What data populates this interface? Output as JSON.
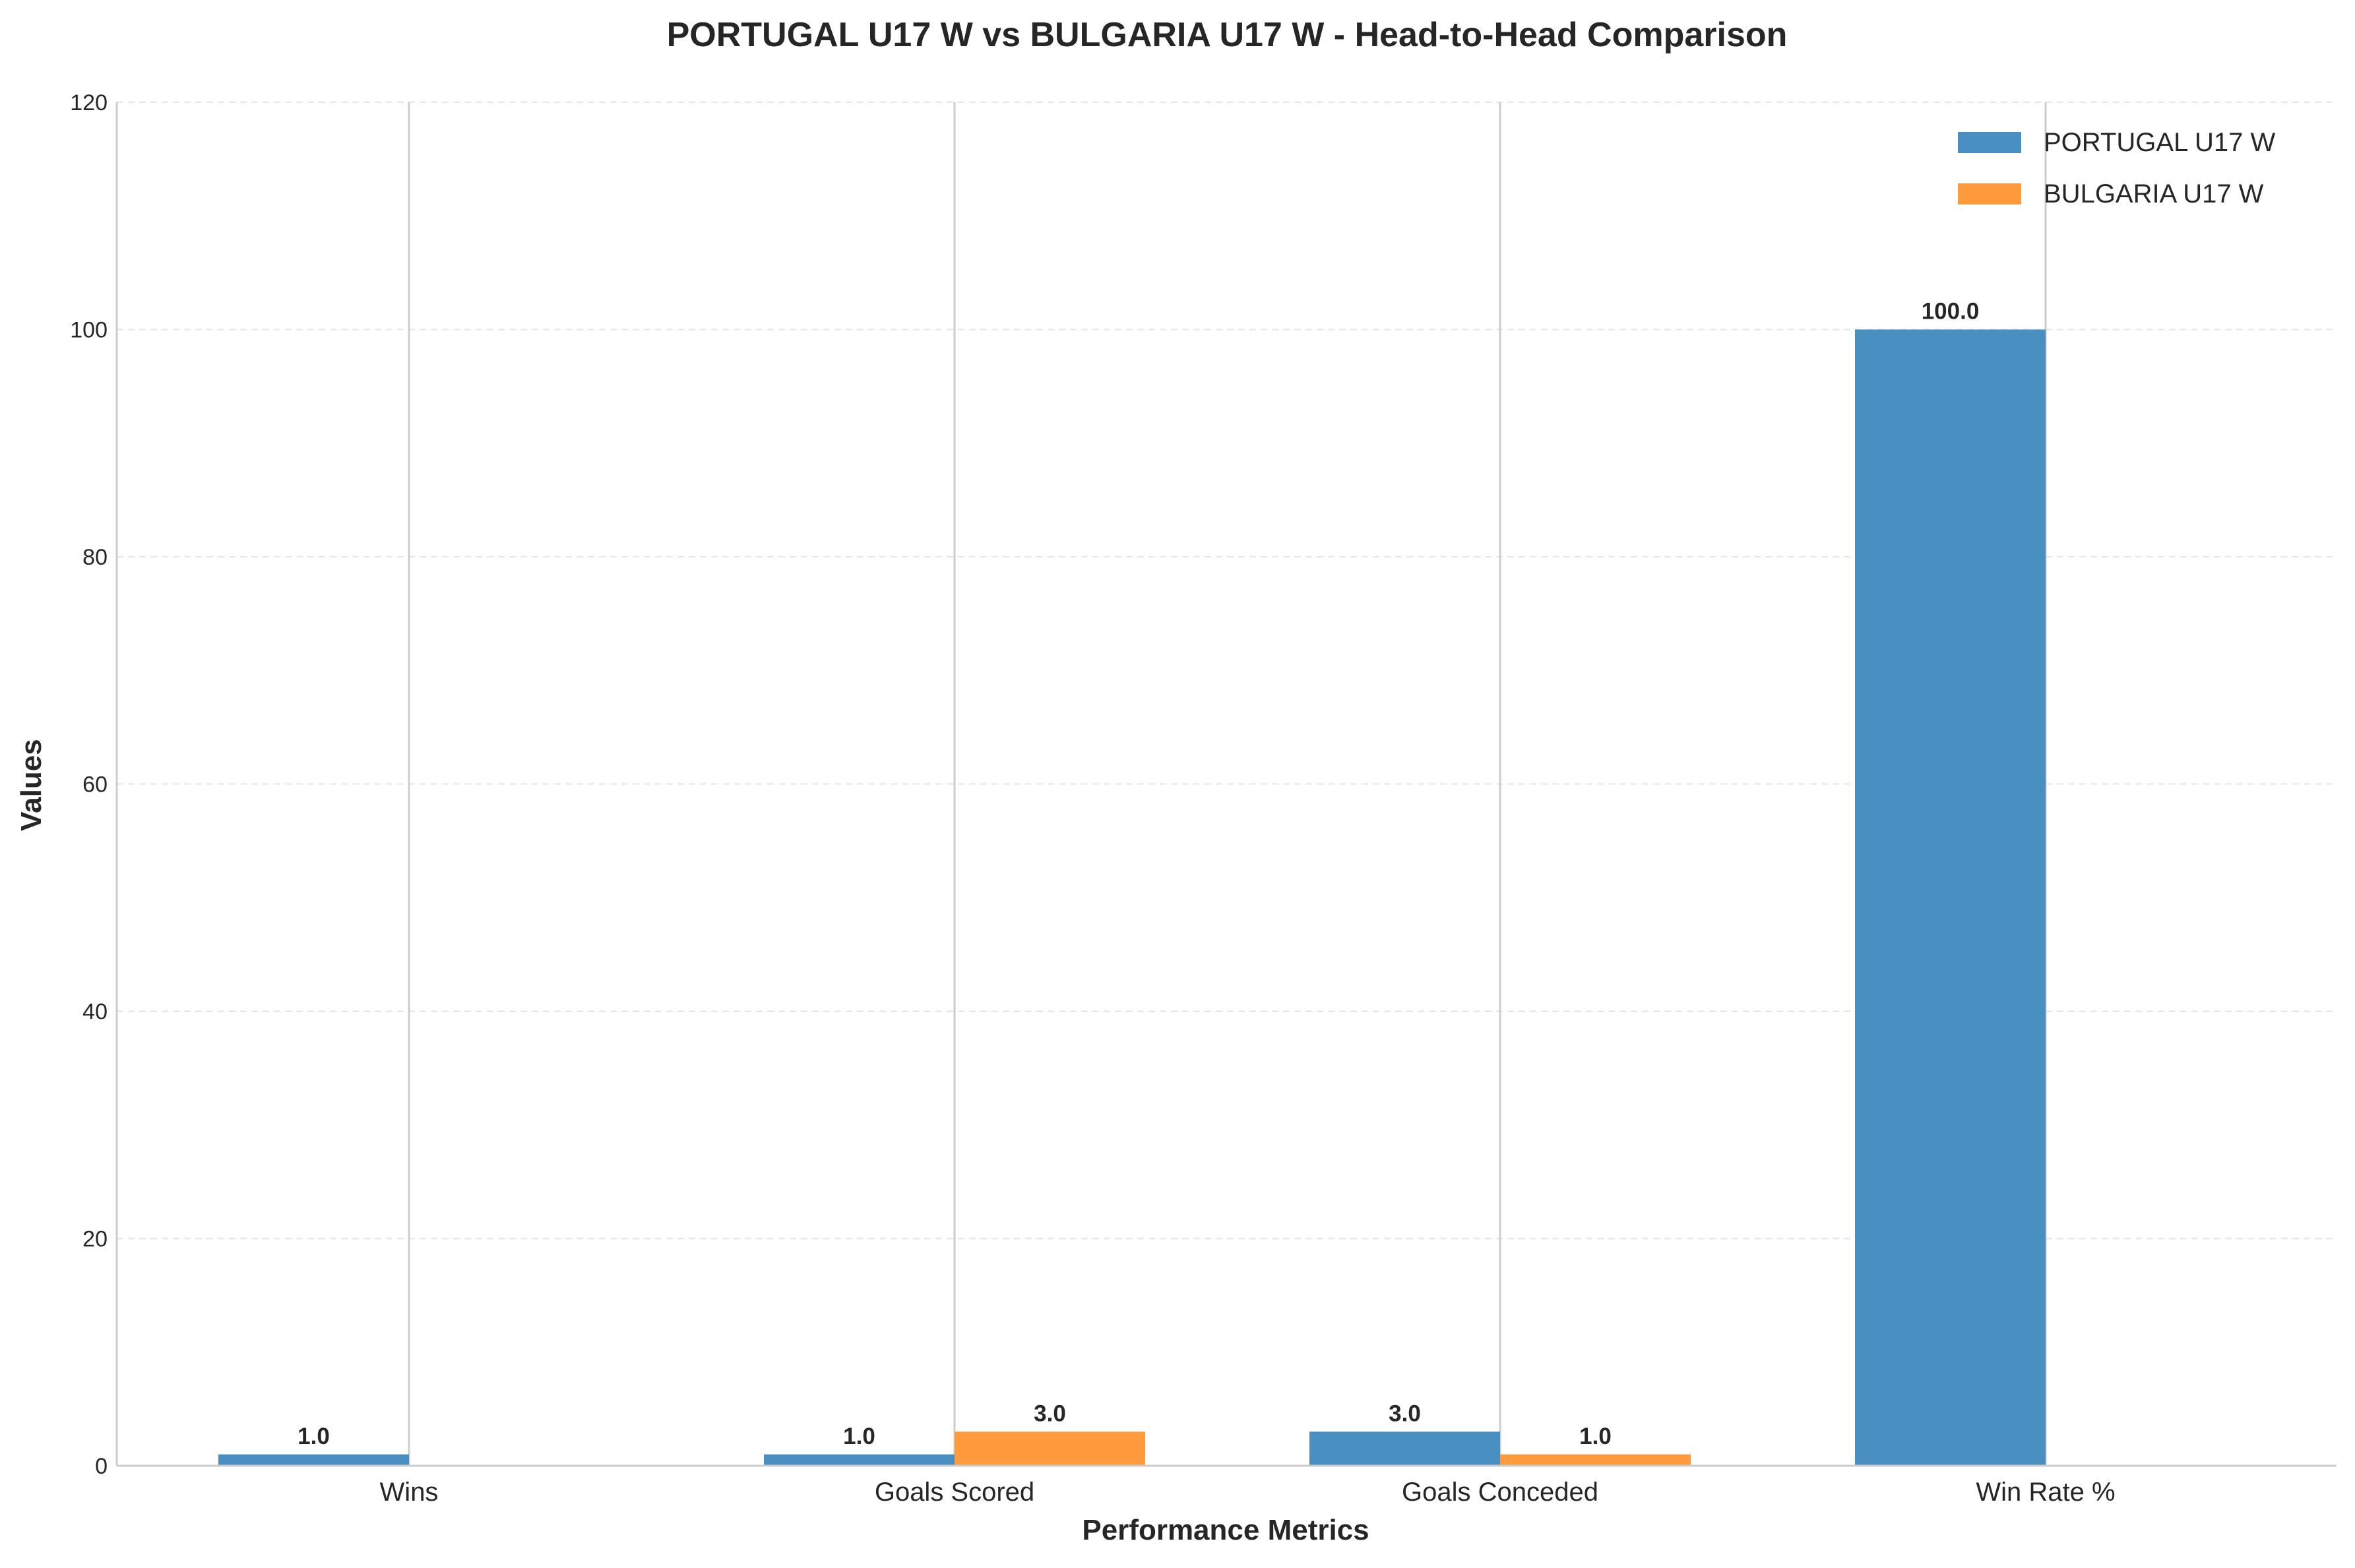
{
  "chart_data": {
    "type": "bar",
    "title": "PORTUGAL U17 W vs BULGARIA U17 W - Head-to-Head Comparison",
    "xlabel": "Performance Metrics",
    "ylabel": "Values",
    "categories": [
      "Wins",
      "Goals Scored",
      "Goals Conceded",
      "Win Rate %"
    ],
    "series": [
      {
        "name": "PORTUGAL U17 W",
        "values": [
          1.0,
          1.0,
          3.0,
          100.0
        ],
        "labels": [
          "1.0",
          "1.0",
          "3.0",
          "100.0"
        ],
        "color": "#4a8fc1"
      },
      {
        "name": "BULGARIA U17 W",
        "values": [
          0,
          3.0,
          1.0,
          0
        ],
        "labels": [
          "",
          "3.0",
          "1.0",
          ""
        ],
        "color": "#ff9a3d"
      }
    ],
    "ylim": [
      0,
      120
    ],
    "yticks": [
      0,
      20,
      40,
      60,
      80,
      100,
      120
    ],
    "grid": true,
    "legend_position": "top-right"
  }
}
